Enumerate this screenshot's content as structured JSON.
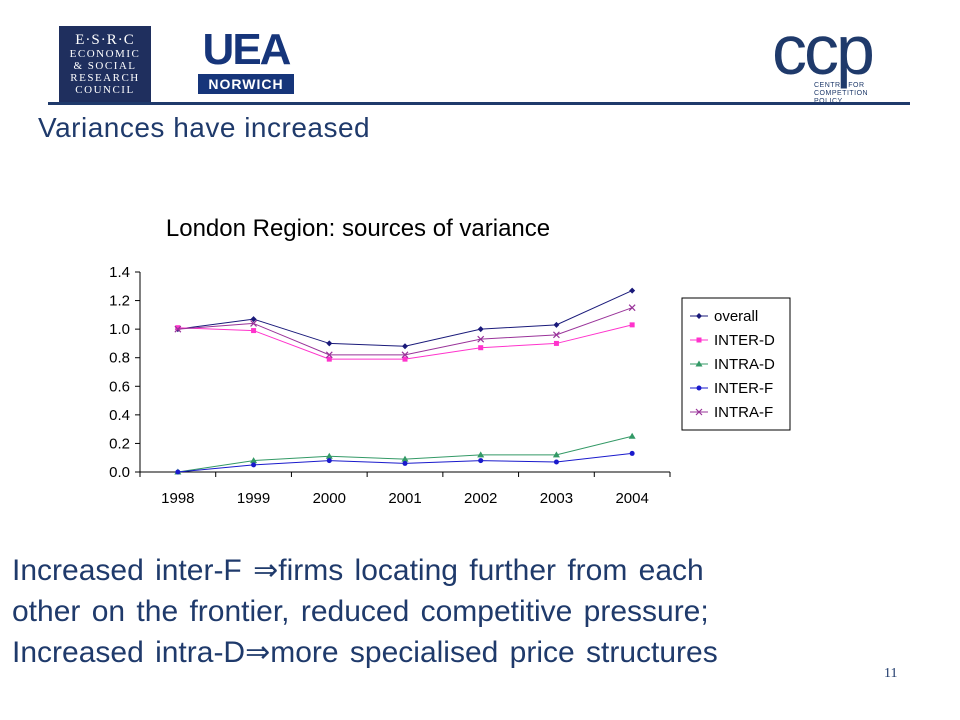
{
  "logos": {
    "esrc": {
      "line1": "E·S·R·C",
      "line2": "ECONOMIC",
      "line3": "& SOCIAL",
      "line4": "RESEARCH",
      "line5": "COUNCIL"
    },
    "uea": {
      "mark": "UEA",
      "sub": "NORWICH"
    },
    "ccp": {
      "mark": "ccp",
      "sub_line1": "CENTRE FOR",
      "sub_line2": "COMPETITION POLICY"
    }
  },
  "slide": {
    "title": "Variances have increased",
    "body_1": "Increased inter-F ⇒firms locating further from each",
    "body_2": "other on the frontier, reduced competitive pressure;",
    "body_3": "Increased intra-D⇒more specialised price structures",
    "page_number": "11"
  },
  "chart_data": {
    "type": "line",
    "title": "London Region: sources of variance",
    "categories": [
      "1998",
      "1999",
      "2000",
      "2001",
      "2002",
      "2003",
      "2004"
    ],
    "ylim": [
      0,
      1.4
    ],
    "yticks": [
      "0.0",
      "0.2",
      "0.4",
      "0.6",
      "0.8",
      "1.0",
      "1.2",
      "1.4"
    ],
    "grid": false,
    "legend_position": "right",
    "series": [
      {
        "name": "overall",
        "color": "#1a1a7a",
        "marker": "diamond",
        "values": [
          1.0,
          1.07,
          0.9,
          0.88,
          1.0,
          1.03,
          1.27
        ]
      },
      {
        "name": "INTER-D",
        "color": "#ff33cc",
        "marker": "square",
        "values": [
          1.01,
          0.99,
          0.79,
          0.79,
          0.87,
          0.9,
          1.03
        ]
      },
      {
        "name": "INTRA-D",
        "color": "#339966",
        "marker": "triangle",
        "values": [
          0.0,
          0.08,
          0.11,
          0.09,
          0.12,
          0.12,
          0.25
        ]
      },
      {
        "name": "INTER-F",
        "color": "#1a1acc",
        "marker": "circle",
        "values": [
          0.0,
          0.05,
          0.08,
          0.06,
          0.08,
          0.07,
          0.13
        ]
      },
      {
        "name": "INTRA-F",
        "color": "#993399",
        "marker": "x",
        "values": [
          1.0,
          1.04,
          0.82,
          0.82,
          0.93,
          0.96,
          1.15
        ]
      }
    ]
  }
}
